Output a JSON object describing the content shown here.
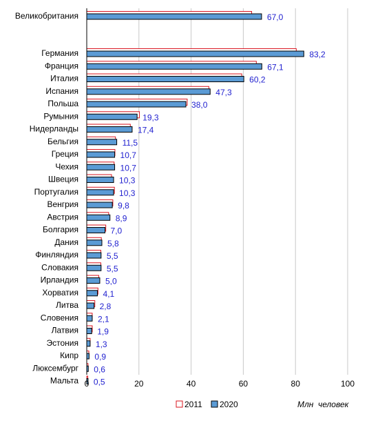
{
  "chart_data": {
    "type": "bar",
    "orientation": "horizontal",
    "categories": [
      "Великобритания",
      "Германия",
      "Франция",
      "Италия",
      "Испания",
      "Польша",
      "Румыния",
      "Нидерланды",
      "Бельгия",
      "Греция",
      "Чехия",
      "Швеция",
      "Португалия",
      "Венгрия",
      "Австрия",
      "Болгария",
      "Дания",
      "Финляндия",
      "Словакия",
      "Ирландия",
      "Хорватия",
      "Литва",
      "Словения",
      "Латвия",
      "Эстония",
      "Кипр",
      "Люксембург",
      "Мальта"
    ],
    "series": [
      {
        "name": "2011",
        "values": [
          63.2,
          80.3,
          65.0,
          59.4,
          46.8,
          38.5,
          20.2,
          16.7,
          11.0,
          10.8,
          10.5,
          9.5,
          10.6,
          10.0,
          8.4,
          7.3,
          5.6,
          5.4,
          5.4,
          4.6,
          4.3,
          3.1,
          2.1,
          2.1,
          1.3,
          0.8,
          0.5,
          0.4
        ],
        "color": "#d9141e",
        "fill": "#ffffff"
      },
      {
        "name": "2020",
        "values": [
          67.0,
          83.2,
          67.1,
          60.2,
          47.3,
          38.0,
          19.3,
          17.4,
          11.5,
          10.7,
          10.7,
          10.3,
          10.3,
          9.8,
          8.9,
          7.0,
          5.8,
          5.5,
          5.5,
          5.0,
          4.1,
          2.8,
          2.1,
          1.9,
          1.3,
          0.9,
          0.6,
          0.5
        ],
        "color": "#5b9bd5",
        "stroke": "#000000"
      }
    ],
    "value_labels": [
      "67,0",
      "83,2",
      "67,1",
      "60,2",
      "47,3",
      "38,0",
      "19,3",
      "17,4",
      "11,5",
      "10,7",
      "10,7",
      "10,3",
      "10,3",
      "9,8",
      "8,9",
      "7,0",
      "5,8",
      "5,5",
      "5,5",
      "5,0",
      "4,1",
      "2,8",
      "2,1",
      "1,9",
      "1,3",
      "0,9",
      "0,6",
      "0,5"
    ],
    "xticks": [
      "0",
      "20",
      "40",
      "60",
      "80",
      "100"
    ],
    "xlim": [
      0,
      100
    ],
    "grid": true,
    "legend_placement": "bottom",
    "unit_label": "Млн  человек"
  }
}
